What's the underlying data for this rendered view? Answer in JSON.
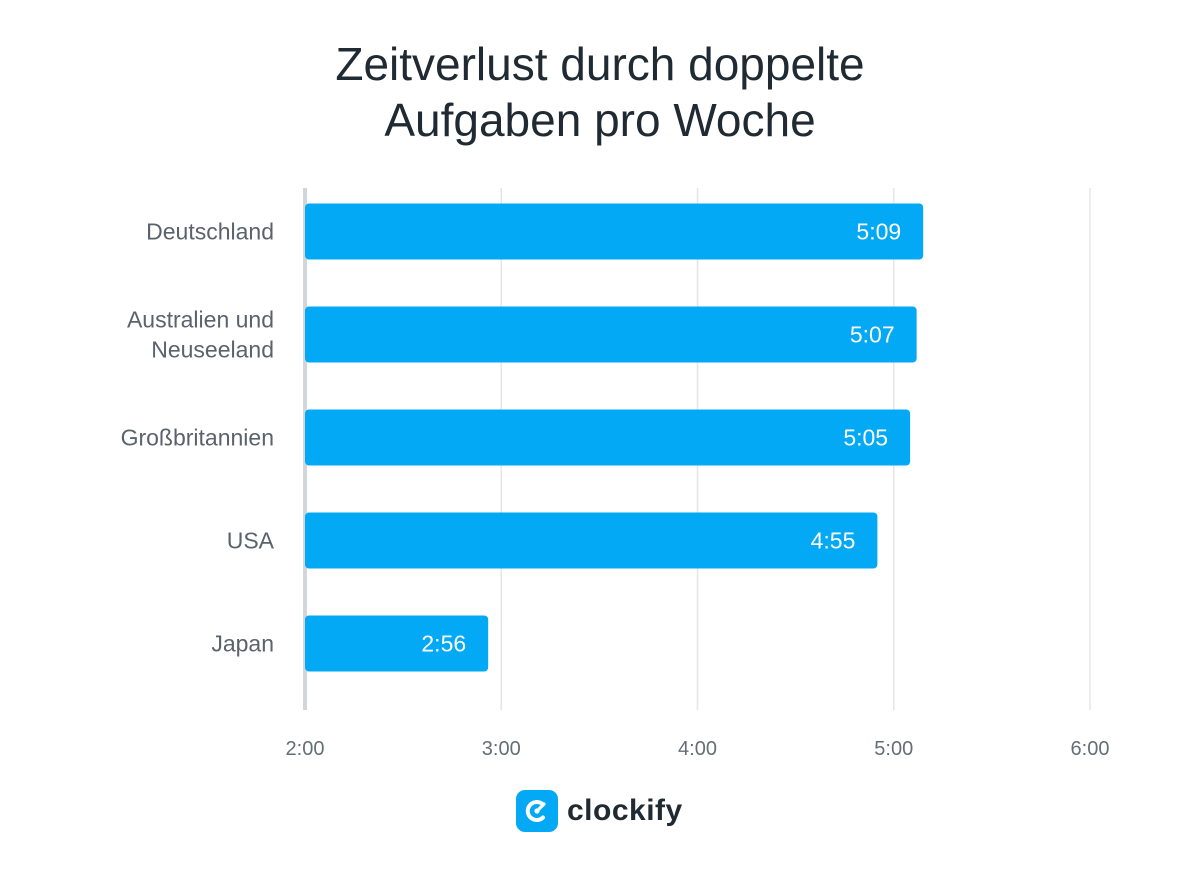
{
  "chart_data": {
    "type": "bar",
    "orientation": "horizontal",
    "title": [
      "Zeitverlust durch doppelte",
      "Aufgaben pro Woche"
    ],
    "categories": [
      "Deutschland",
      [
        "Australien und",
        "Neuseeland"
      ],
      "Großbritannien",
      "USA",
      "Japan"
    ],
    "values_minutes": [
      309,
      307,
      305,
      295,
      176
    ],
    "value_labels": [
      "5:09",
      "5:07",
      "5:05",
      "4:55",
      "2:56"
    ],
    "x_ticks": [
      "2:00",
      "3:00",
      "4:00",
      "5:00",
      "6:00"
    ],
    "x_tick_minutes": [
      120,
      180,
      240,
      300,
      360
    ],
    "xlim_minutes": [
      120,
      360
    ],
    "grid": "vertical",
    "bar_color": "#03a9f4"
  },
  "brand": {
    "name": "clockify",
    "logo_icon": "clockify-logo-icon",
    "color": "#03a9f4"
  }
}
